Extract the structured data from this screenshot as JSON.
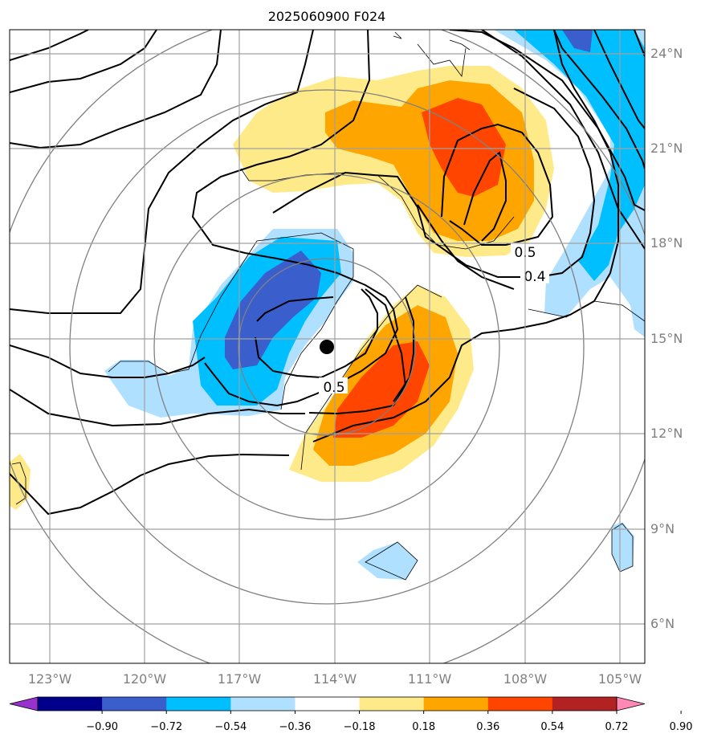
{
  "title": "2025060900 F024",
  "lon_labels": [
    "123°W",
    "120°W",
    "117°W",
    "114°W",
    "111°W",
    "108°W",
    "105°W"
  ],
  "lat_labels": [
    "24°N",
    "21°N",
    "18°N",
    "15°N",
    "12°N",
    "9°N",
    "6°N"
  ],
  "contour_labels": [
    "0.5",
    "0.4",
    "0.5"
  ],
  "storm_center": {
    "lon": -114.3,
    "lat": 14.7
  },
  "colorbar": {
    "tick_labels": [
      "−0.90",
      "−0.72",
      "−0.54",
      "−0.36",
      "−0.18",
      "0.18",
      "0.36",
      "0.54",
      "0.72",
      "0.90"
    ],
    "colors": [
      "#9932cc",
      "#00008b",
      "#3a5fcd",
      "#00bfff",
      "#b0e0ff",
      "#ffffff",
      "#ffea8a",
      "#ffa500",
      "#ff4500",
      "#b22222",
      "#ff88b4"
    ]
  },
  "colors": {
    "grid": "#a0a0a0",
    "range_rings": "#808080",
    "contours": "#000000"
  }
}
